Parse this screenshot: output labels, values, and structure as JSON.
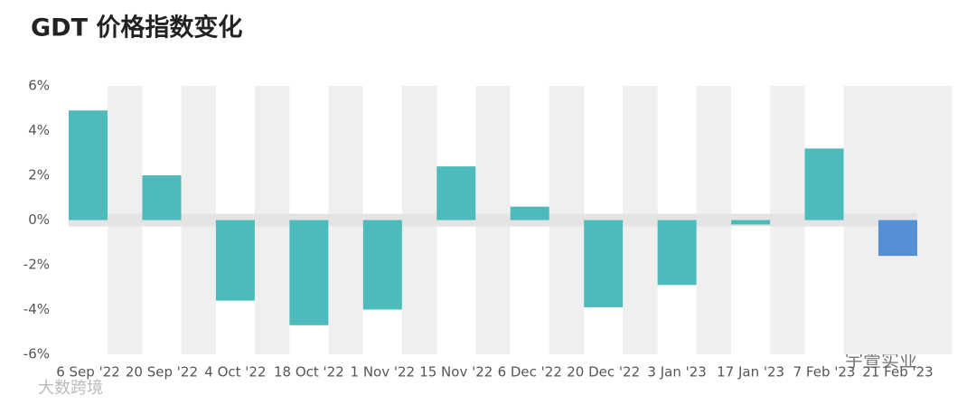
{
  "chart_data": {
    "type": "bar",
    "title": "GDT 价格指数变化",
    "categories": [
      "6 Sep '22",
      "20 Sep '22",
      "4 Oct '22",
      "18 Oct '22",
      "1 Nov '22",
      "15 Nov '22",
      "6 Dec '22",
      "20 Dec '22",
      "3 Jan '23",
      "17 Jan '23",
      "7 Feb '23",
      "21 Feb '23"
    ],
    "values": [
      4.9,
      2.0,
      -3.6,
      -4.7,
      -4.0,
      2.4,
      0.6,
      -3.9,
      -2.9,
      -0.2,
      3.2,
      -1.6
    ],
    "colors": [
      "#4dbbbb",
      "#4dbbbb",
      "#4dbbbb",
      "#4dbbbb",
      "#4dbbbb",
      "#4dbbbb",
      "#4dbbbb",
      "#4dbbbb",
      "#4dbbbb",
      "#4dbbbb",
      "#4dbbbb",
      "#5590d4"
    ],
    "ylim": [
      -6,
      6
    ],
    "yticks": [
      {
        "value": 6,
        "label": "6%"
      },
      {
        "value": 4,
        "label": "4%"
      },
      {
        "value": 2,
        "label": "2%"
      },
      {
        "value": 0,
        "label": "0%"
      },
      {
        "value": -2,
        "label": "-2%"
      },
      {
        "value": -4,
        "label": "-4%"
      },
      {
        "value": -6,
        "label": "-6%"
      }
    ]
  },
  "watermarks": [
    "大数跨境",
    "宇萱实业"
  ]
}
